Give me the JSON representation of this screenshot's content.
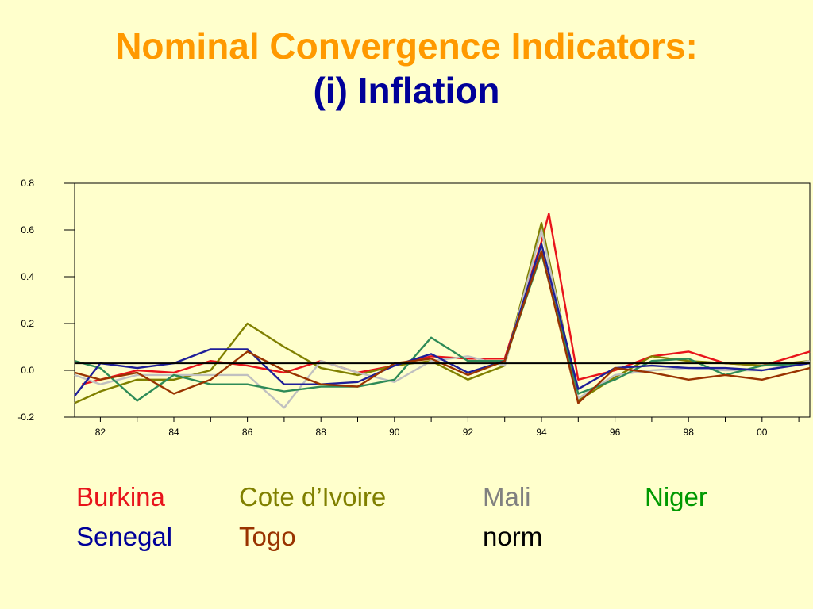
{
  "slide": {
    "title_line1": "Nominal Convergence Indicators:",
    "title_line2": "(i) Inflation"
  },
  "chart_data": {
    "type": "line",
    "ylim": [
      -0.2,
      0.8
    ],
    "xlim": [
      1981.3,
      2001.3
    ],
    "y_ticks": [
      -0.2,
      0.0,
      0.2,
      0.4,
      0.6,
      0.8
    ],
    "y_tick_labels": [
      "-0.2",
      "0.0",
      "0.2",
      "0.4",
      "0.6",
      "0.8"
    ],
    "x_ticks": [
      1982,
      1984,
      1986,
      1988,
      1990,
      1992,
      1994,
      1996,
      1998,
      2000
    ],
    "x_tick_labels": [
      "82",
      "84",
      "86",
      "88",
      "90",
      "92",
      "94",
      "96",
      "98",
      "00"
    ],
    "grid": false,
    "series": [
      {
        "name": "Burkina",
        "color": "#E8141B",
        "x": [
          1981.5,
          1982,
          1983,
          1984,
          1985,
          1986,
          1987,
          1988,
          1989,
          1990,
          1991,
          1992,
          1993,
          1994,
          1994.2,
          1995,
          1996,
          1997,
          1998,
          1999,
          2000,
          2001.3
        ],
        "values": [
          -0.06,
          -0.04,
          0.0,
          -0.01,
          0.04,
          0.02,
          -0.01,
          0.04,
          -0.01,
          0.02,
          0.06,
          0.05,
          0.05,
          0.55,
          0.67,
          -0.04,
          0.0,
          0.06,
          0.08,
          0.03,
          0.02,
          0.08
        ]
      },
      {
        "name": "Cote d’Ivoire",
        "color": "#808000",
        "x": [
          1981.3,
          1982,
          1983,
          1984,
          1985,
          1986,
          1987,
          1988,
          1989,
          1990,
          1991,
          1992,
          1993,
          1994,
          1995,
          1996,
          1997,
          1998,
          1999,
          2000,
          2001.3
        ],
        "values": [
          -0.14,
          -0.09,
          -0.04,
          -0.04,
          0.0,
          0.2,
          0.1,
          0.01,
          -0.02,
          0.02,
          0.04,
          -0.04,
          0.02,
          0.63,
          -0.13,
          -0.03,
          0.06,
          0.04,
          0.03,
          0.02,
          0.04
        ]
      },
      {
        "name": "Mali",
        "color": "#C0C0C0",
        "x": [
          1981.3,
          1982,
          1983,
          1984,
          1985,
          1986,
          1987,
          1988,
          1989,
          1990,
          1991,
          1992,
          1993,
          1994,
          1995,
          1996,
          1997,
          1998,
          1999,
          2000,
          2001.3
        ],
        "values": [
          -0.02,
          -0.06,
          -0.02,
          -0.02,
          -0.02,
          -0.02,
          -0.16,
          0.04,
          -0.01,
          -0.05,
          0.04,
          0.06,
          0.02,
          0.6,
          -0.12,
          -0.02,
          0.0,
          0.01,
          0.0,
          0.0,
          0.04
        ]
      },
      {
        "name": "Niger",
        "color": "#2E8B57",
        "x": [
          1981.3,
          1982,
          1983,
          1984,
          1985,
          1986,
          1987,
          1988,
          1989,
          1990,
          1991,
          1992,
          1993,
          1994,
          1995,
          1996,
          1997,
          1998,
          1999,
          2000,
          2001.3
        ],
        "values": [
          0.04,
          0.01,
          -0.13,
          -0.02,
          -0.06,
          -0.06,
          -0.09,
          -0.07,
          -0.07,
          -0.04,
          0.14,
          0.04,
          0.04,
          0.5,
          -0.1,
          -0.04,
          0.04,
          0.05,
          -0.02,
          0.02,
          0.03
        ]
      },
      {
        "name": "Senegal",
        "color": "#1F1F99",
        "x": [
          1981.3,
          1982,
          1983,
          1984,
          1985,
          1986,
          1987,
          1988,
          1989,
          1990,
          1991,
          1992,
          1993,
          1994,
          1995,
          1996,
          1997,
          1998,
          1999,
          2000,
          2001.3
        ],
        "values": [
          -0.11,
          0.03,
          0.01,
          0.03,
          0.09,
          0.09,
          -0.06,
          -0.06,
          -0.05,
          0.02,
          0.07,
          -0.01,
          0.04,
          0.54,
          -0.08,
          0.01,
          0.02,
          0.01,
          0.01,
          0.0,
          0.03
        ]
      },
      {
        "name": "Togo",
        "color": "#993300",
        "x": [
          1981.3,
          1982,
          1983,
          1984,
          1985,
          1986,
          1987,
          1988,
          1989,
          1990,
          1991,
          1992,
          1993,
          1994,
          1995,
          1996,
          1997,
          1998,
          1999,
          2000,
          2001.3
        ],
        "values": [
          -0.01,
          -0.04,
          -0.01,
          -0.1,
          -0.04,
          0.08,
          0.0,
          -0.06,
          -0.07,
          0.03,
          0.05,
          -0.02,
          0.04,
          0.51,
          -0.14,
          0.01,
          -0.01,
          -0.04,
          -0.02,
          -0.04,
          0.01
        ]
      },
      {
        "name": "norm",
        "color": "#000000",
        "x": [
          1981.3,
          2001.3
        ],
        "values": [
          0.03,
          0.03
        ]
      }
    ]
  },
  "legend": [
    {
      "label": "Burkina",
      "color": "#E8141B"
    },
    {
      "label": "Cote d’Ivoire",
      "color": "#808000"
    },
    {
      "label": "Mali",
      "color": "#808080"
    },
    {
      "label": "Niger",
      "color": "#009900"
    },
    {
      "label": "Senegal",
      "color": "#000099"
    },
    {
      "label": "Togo",
      "color": "#993300"
    },
    {
      "label": "norm",
      "color": "#000000"
    }
  ]
}
